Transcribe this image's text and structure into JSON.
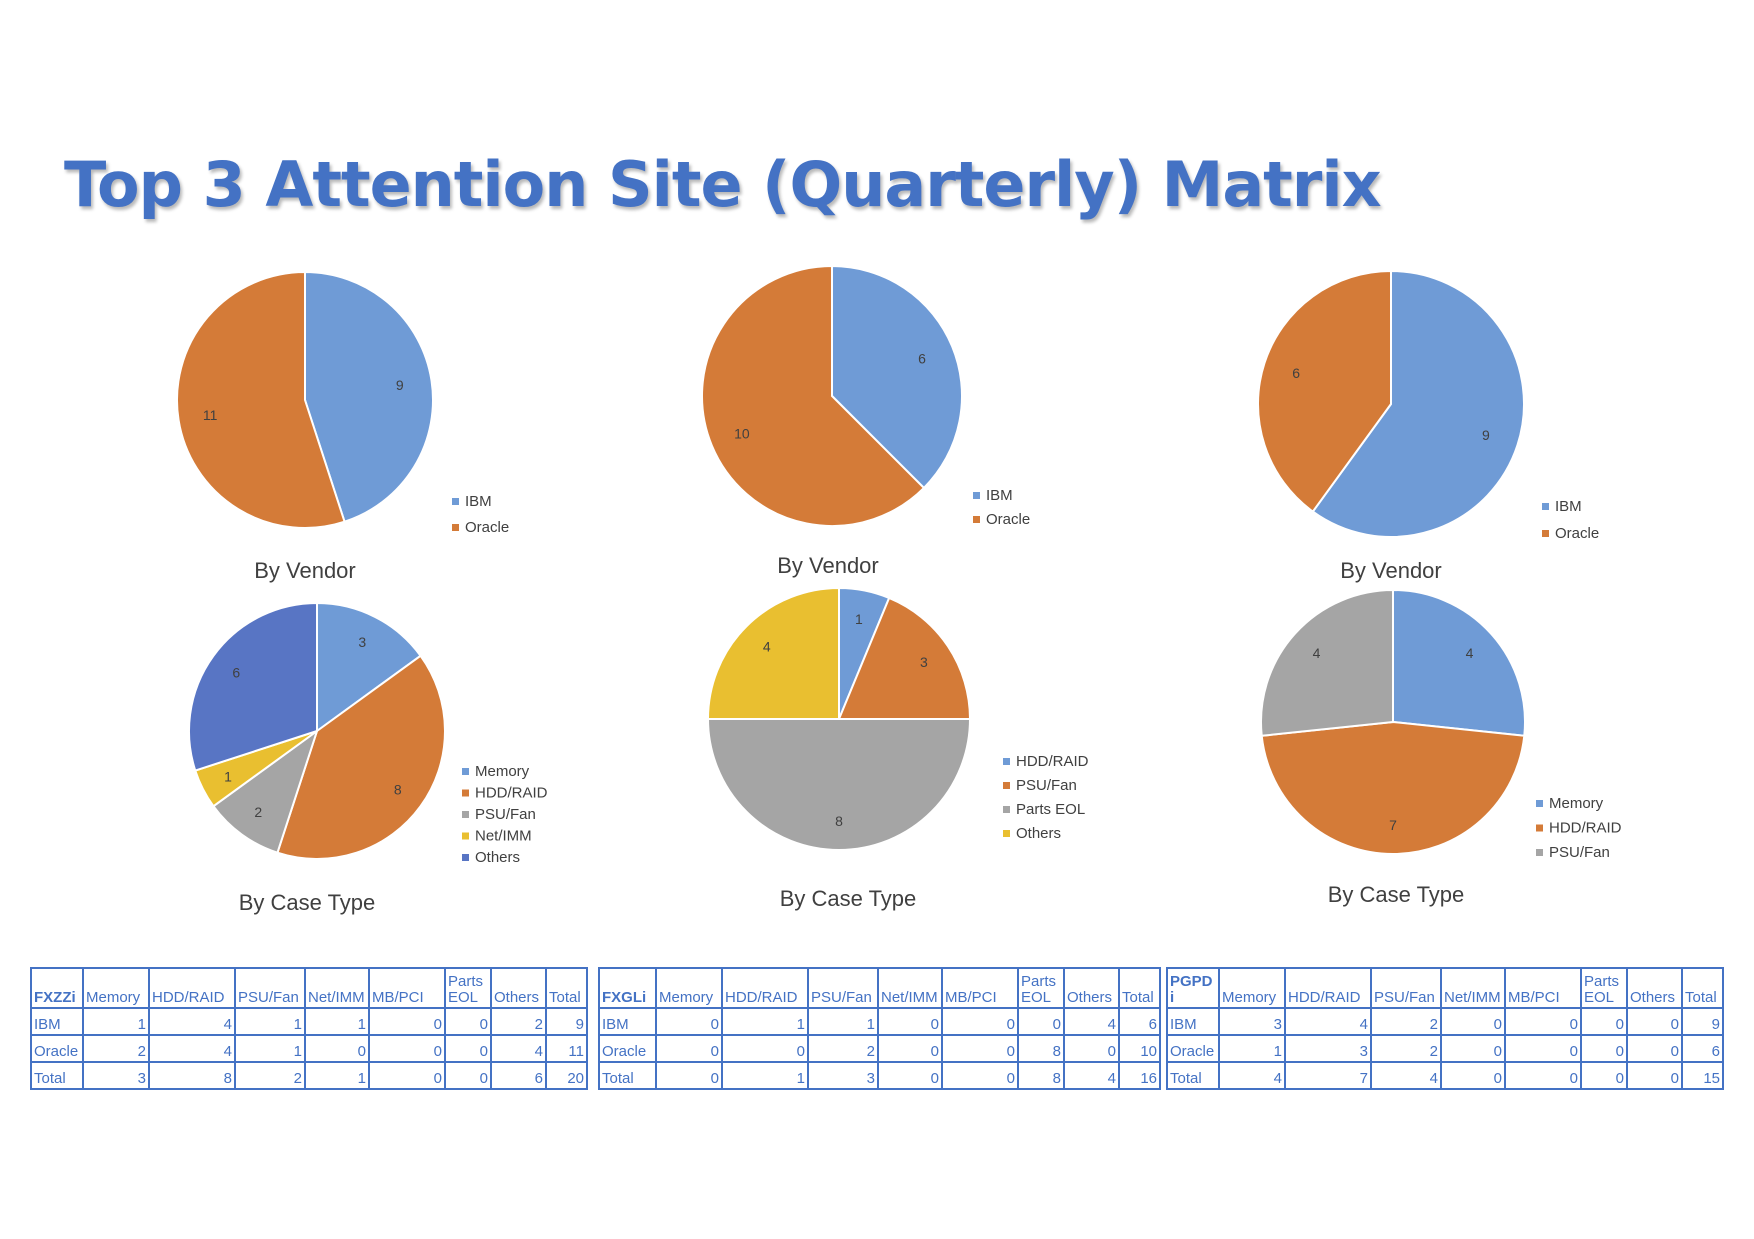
{
  "title": "Top 3 Attention Site (Quarterly) Matrix",
  "colors": {
    "title": "#4472c4",
    "IBM": "#6f9bd6",
    "Oracle": "#d47b38",
    "Memory": "#6f9bd6",
    "HDD/RAID": "#d47b38",
    "PSU/Fan": "#a5a5a5",
    "Parts EOL": "#a5a5a5",
    "Net/IMM": "#e9bf30",
    "Others": "#5875c4",
    "Others_fxgli": "#e9bf30",
    "PSU/Fan_fxgli": "#d47b38",
    "HDD/RAID_fxgli": "#6f9bd6",
    "table": "#4472c4"
  },
  "chart_data": [
    {
      "type": "pie",
      "title": "By Vendor",
      "labels": [
        "IBM",
        "Oracle"
      ],
      "values": [
        9,
        11
      ],
      "legend": [
        "IBM",
        "Oracle"
      ],
      "legend_position": "bottom-right"
    },
    {
      "type": "pie",
      "title": "By Vendor",
      "labels": [
        "IBM",
        "Oracle"
      ],
      "values": [
        6,
        10
      ],
      "legend": [
        "IBM",
        "Oracle"
      ],
      "legend_position": "bottom-right"
    },
    {
      "type": "pie",
      "title": "By Vendor",
      "labels": [
        "IBM",
        "Oracle"
      ],
      "values": [
        9,
        6
      ],
      "legend": [
        "IBM",
        "Oracle"
      ],
      "legend_position": "bottom-right"
    },
    {
      "type": "pie",
      "title": "By Case Type",
      "labels": [
        "Memory",
        "HDD/RAID",
        "PSU/Fan",
        "Net/IMM",
        "Others"
      ],
      "values": [
        3,
        8,
        2,
        1,
        6
      ],
      "legend": [
        "Memory",
        "HDD/RAID",
        "PSU/Fan",
        "Net/IMM",
        "Others"
      ],
      "legend_position": "bottom-right"
    },
    {
      "type": "pie",
      "title": "By Case Type",
      "labels": [
        "HDD/RAID",
        "PSU/Fan",
        "Parts EOL",
        "Others"
      ],
      "values": [
        1,
        3,
        8,
        4
      ],
      "legend": [
        "HDD/RAID",
        "PSU/Fan",
        "Parts EOL",
        "Others"
      ],
      "legend_position": "bottom-right"
    },
    {
      "type": "pie",
      "title": "By Case Type",
      "labels": [
        "Memory",
        "HDD/RAID",
        "PSU/Fan"
      ],
      "values": [
        4,
        7,
        4
      ],
      "legend": [
        "Memory",
        "HDD/RAID",
        "PSU/Fan"
      ],
      "legend_position": "bottom-right"
    }
  ],
  "tables": [
    {
      "site": "FXZZi",
      "columns": [
        "Memory",
        "HDD/RAID",
        "PSU/Fan",
        "Net/IMM",
        "MB/PCI",
        "Parts EOL",
        "Others",
        "Total"
      ],
      "rows": [
        {
          "label": "IBM",
          "values": [
            1,
            4,
            1,
            1,
            0,
            0,
            2,
            9
          ]
        },
        {
          "label": "Oracle",
          "values": [
            2,
            4,
            1,
            0,
            0,
            0,
            4,
            11
          ]
        },
        {
          "label": "Total",
          "values": [
            3,
            8,
            2,
            1,
            0,
            0,
            6,
            20
          ]
        }
      ]
    },
    {
      "site": "FXGLi",
      "columns": [
        "Memory",
        "HDD/RAID",
        "PSU/Fan",
        "Net/IMM",
        "MB/PCI",
        "Parts EOL",
        "Others",
        "Total"
      ],
      "rows": [
        {
          "label": "IBM",
          "values": [
            0,
            1,
            1,
            0,
            0,
            0,
            4,
            6
          ]
        },
        {
          "label": "Oracle",
          "values": [
            0,
            0,
            2,
            0,
            0,
            8,
            0,
            10
          ]
        },
        {
          "label": "Total",
          "values": [
            0,
            1,
            3,
            0,
            0,
            8,
            4,
            16
          ]
        }
      ]
    },
    {
      "site": "PGPDi",
      "columns": [
        "Memory",
        "HDD/RAID",
        "PSU/Fan",
        "Net/IMM",
        "MB/PCI",
        "Parts EOL",
        "Others",
        "Total"
      ],
      "rows": [
        {
          "label": "IBM",
          "values": [
            3,
            4,
            2,
            0,
            0,
            0,
            0,
            9
          ]
        },
        {
          "label": "Oracle",
          "values": [
            1,
            3,
            2,
            0,
            0,
            0,
            0,
            6
          ]
        },
        {
          "label": "Total",
          "values": [
            4,
            7,
            4,
            0,
            0,
            0,
            0,
            15
          ]
        }
      ]
    }
  ]
}
